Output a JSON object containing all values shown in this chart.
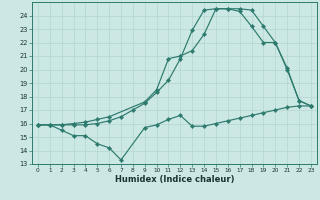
{
  "xlabel": "Humidex (Indice chaleur)",
  "bg_color": "#cce8e4",
  "line_color": "#2d7a6e",
  "grid_color": "#b8d8d4",
  "xlim": [
    -0.5,
    23.5
  ],
  "ylim": [
    13,
    25
  ],
  "yticks": [
    13,
    14,
    15,
    16,
    17,
    18,
    19,
    20,
    21,
    22,
    23,
    24
  ],
  "xticks": [
    0,
    1,
    2,
    3,
    4,
    5,
    6,
    7,
    8,
    9,
    10,
    11,
    12,
    13,
    14,
    15,
    16,
    17,
    18,
    19,
    20,
    21,
    22,
    23
  ],
  "line1_x": [
    0,
    1,
    2,
    3,
    4,
    5,
    6,
    7,
    9,
    10,
    11,
    12,
    13,
    14,
    15,
    16,
    17,
    18,
    19,
    20,
    21,
    22,
    23
  ],
  "line1_y": [
    15.9,
    15.9,
    15.5,
    15.1,
    15.1,
    14.5,
    14.2,
    13.3,
    15.7,
    15.9,
    16.3,
    16.6,
    15.8,
    15.8,
    16.0,
    16.2,
    16.4,
    16.6,
    16.8,
    17.0,
    17.2,
    17.3,
    17.3
  ],
  "line2_x": [
    0,
    1,
    2,
    3,
    4,
    5,
    6,
    7,
    8,
    9,
    10,
    11,
    12,
    13,
    14,
    15,
    16,
    17,
    18,
    19,
    20,
    21,
    22,
    23
  ],
  "line2_y": [
    15.9,
    15.9,
    15.9,
    15.9,
    15.9,
    16.0,
    16.2,
    16.5,
    17.0,
    17.5,
    18.3,
    19.2,
    20.8,
    22.9,
    24.4,
    24.5,
    24.5,
    24.3,
    23.2,
    22.0,
    22.0,
    20.0,
    17.7,
    17.3
  ],
  "line3_x": [
    0,
    1,
    2,
    3,
    4,
    5,
    6,
    9,
    10,
    11,
    12,
    13,
    14,
    15,
    16,
    17,
    18,
    19,
    20,
    21,
    22,
    23
  ],
  "line3_y": [
    15.9,
    15.9,
    15.9,
    16.0,
    16.1,
    16.3,
    16.5,
    17.6,
    18.5,
    20.8,
    21.0,
    21.4,
    22.6,
    24.5,
    24.5,
    24.5,
    24.4,
    23.2,
    22.0,
    20.1,
    17.7,
    17.3
  ]
}
